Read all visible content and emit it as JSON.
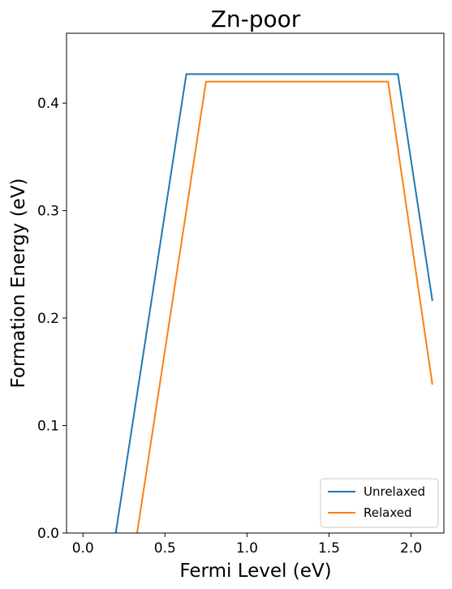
{
  "chart_data": {
    "type": "line",
    "title": "Zn-poor",
    "xlabel": "Fermi Level (eV)",
    "ylabel": "Formation Energy (eV)",
    "xlim": [
      -0.1,
      2.2
    ],
    "ylim": [
      0.0,
      0.465
    ],
    "xticks": [
      0.0,
      0.5,
      1.0,
      1.5,
      2.0
    ],
    "xtick_labels": [
      "0.0",
      "0.5",
      "1.0",
      "1.5",
      "2.0"
    ],
    "yticks": [
      0.0,
      0.1,
      0.2,
      0.3,
      0.4
    ],
    "ytick_labels": [
      "0.0",
      "0.1",
      "0.2",
      "0.3",
      "0.4"
    ],
    "grid": false,
    "legend_position": "lower-right",
    "series": [
      {
        "name": "Unrelaxed",
        "color": "#1f77b4",
        "x": [
          0.2,
          0.63,
          1.92,
          2.13
        ],
        "y": [
          0.0,
          0.427,
          0.427,
          0.216
        ]
      },
      {
        "name": "Relaxed",
        "color": "#ff7f0e",
        "x": [
          0.33,
          0.75,
          1.86,
          2.13
        ],
        "y": [
          0.0,
          0.42,
          0.42,
          0.138
        ]
      }
    ]
  }
}
